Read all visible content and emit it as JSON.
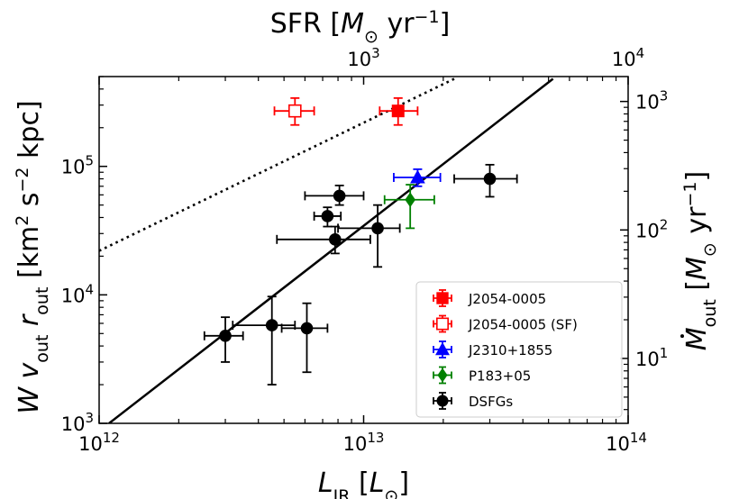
{
  "chart_data": {
    "type": "scatter",
    "xscale": "log",
    "yscale": "log",
    "xlim": [
      1000000000000.0,
      100000000000000.0
    ],
    "ylim": [
      1000.0,
      500000.0
    ],
    "top_axis": {
      "label_parts": [
        "SFR [",
        "M",
        "⊙",
        " yr",
        "−1",
        "]"
      ],
      "ticks": [
        {
          "value": 1000,
          "mantissa": "10",
          "exp": "3"
        },
        {
          "value": 10000,
          "mantissa": "10",
          "exp": "4"
        }
      ],
      "sfr_per_lir": 1e-10
    },
    "right_axis": {
      "label_parts": [
        "M",
        "out",
        " [",
        "M",
        "⊙",
        " yr",
        "−1",
        "]"
      ],
      "ticks": [
        {
          "value": 10,
          "mantissa": "10",
          "exp": "1"
        },
        {
          "value": 100,
          "mantissa": "10",
          "exp": "2"
        },
        {
          "value": 1000,
          "mantissa": "10",
          "exp": "3"
        }
      ],
      "y_per_mdot": 320
    },
    "x_ticks": [
      {
        "value": 1000000000000.0,
        "mantissa": "10",
        "exp": "12"
      },
      {
        "value": 10000000000000.0,
        "mantissa": "10",
        "exp": "13"
      },
      {
        "value": 100000000000000.0,
        "mantissa": "10",
        "exp": "14"
      }
    ],
    "y_ticks": [
      {
        "value": 1000.0,
        "mantissa": "10",
        "exp": "3"
      },
      {
        "value": 10000.0,
        "mantissa": "10",
        "exp": "4"
      },
      {
        "value": 100000.0,
        "mantissa": "10",
        "exp": "5"
      }
    ],
    "xlabel_parts": [
      "L",
      "IR",
      " [",
      "L",
      "⊙",
      "]"
    ],
    "ylabel_parts": [
      "W v",
      "out",
      " r",
      "out",
      " [km",
      "2",
      " s",
      "−2",
      " kpc]"
    ],
    "lines": [
      {
        "name": "solid-relation",
        "style": "solid",
        "x": [
          1090000000000.0,
          52000000000000.0
        ],
        "y": [
          1000,
          480000
        ]
      },
      {
        "name": "dotted-relation",
        "style": "dotted",
        "x": [
          1000000000000.0,
          22000000000000.0
        ],
        "y": [
          22000,
          480000
        ]
      }
    ],
    "series": [
      {
        "name": "J2054-0005",
        "color": "#ff0000",
        "marker": "square",
        "filled": true,
        "points": [
          {
            "x": 13500000000000.0,
            "y": 270000,
            "xerr": [
              11500000000000.0,
              16000000000000.0
            ],
            "yerr": [
              210000,
              340000
            ]
          }
        ]
      },
      {
        "name": "J2054-0005 (SF)",
        "color": "#ff0000",
        "marker": "square",
        "filled": false,
        "points": [
          {
            "x": 5500000000000.0,
            "y": 270000,
            "xerr": [
              4600000000000.0,
              6500000000000.0
            ],
            "yerr": [
              210000,
              340000
            ]
          }
        ]
      },
      {
        "name": "J2310+1855",
        "color": "#0000ff",
        "marker": "triangle",
        "filled": true,
        "points": [
          {
            "x": 16000000000000.0,
            "y": 82000,
            "xerr": [
              13000000000000.0,
              19500000000000.0
            ],
            "yerr": [
              70000,
              95000
            ]
          }
        ]
      },
      {
        "name": "P183+05",
        "color": "#008000",
        "marker": "diamond",
        "filled": true,
        "points": [
          {
            "x": 15000000000000.0,
            "y": 55000,
            "xerr": [
              12000000000000.0,
              18500000000000.0
            ],
            "yerr": [
              33000,
              72000
            ]
          }
        ]
      },
      {
        "name": "DSFGs",
        "color": "#000000",
        "marker": "circle",
        "filled": true,
        "points": [
          {
            "x": 30000000000000.0,
            "y": 80000,
            "xerr": [
              22000000000000.0,
              38000000000000.0
            ],
            "yerr": [
              58000,
              103000
            ]
          },
          {
            "x": 8100000000000.0,
            "y": 59000,
            "xerr": [
              6000000000000.0,
              10000000000000.0
            ],
            "yerr": [
              50000,
              71000
            ]
          },
          {
            "x": 7300000000000.0,
            "y": 41000,
            "xerr": [
              6500000000000.0,
              8200000000000.0
            ],
            "yerr": [
              34000,
              48000
            ]
          },
          {
            "x": 7800000000000.0,
            "y": 27000,
            "xerr": [
              4700000000000.0,
              10600000000000.0
            ],
            "yerr": [
              21000,
              34000
            ]
          },
          {
            "x": 11300000000000.0,
            "y": 33000,
            "xerr": [
              8000000000000.0,
              13700000000000.0
            ],
            "yerr": [
              16500,
              50000
            ]
          },
          {
            "x": 3000000000000.0,
            "y": 4800,
            "xerr": [
              2500000000000.0,
              3500000000000.0
            ],
            "yerr": [
              3000,
              6700
            ]
          },
          {
            "x": 4500000000000.0,
            "y": 5800,
            "xerr": [
              3200000000000.0,
              5500000000000.0
            ],
            "yerr": [
              2000,
              9700
            ]
          },
          {
            "x": 6100000000000.0,
            "y": 5500,
            "xerr": [
              4900000000000.0,
              7300000000000.0
            ],
            "yerr": [
              2500,
              8600
            ]
          }
        ]
      }
    ],
    "legend": {
      "position": "lower-right",
      "entries": [
        "J2054-0005",
        "J2054-0005 (SF)",
        "J2310+1855",
        "P183+05",
        "DSFGs"
      ]
    }
  }
}
